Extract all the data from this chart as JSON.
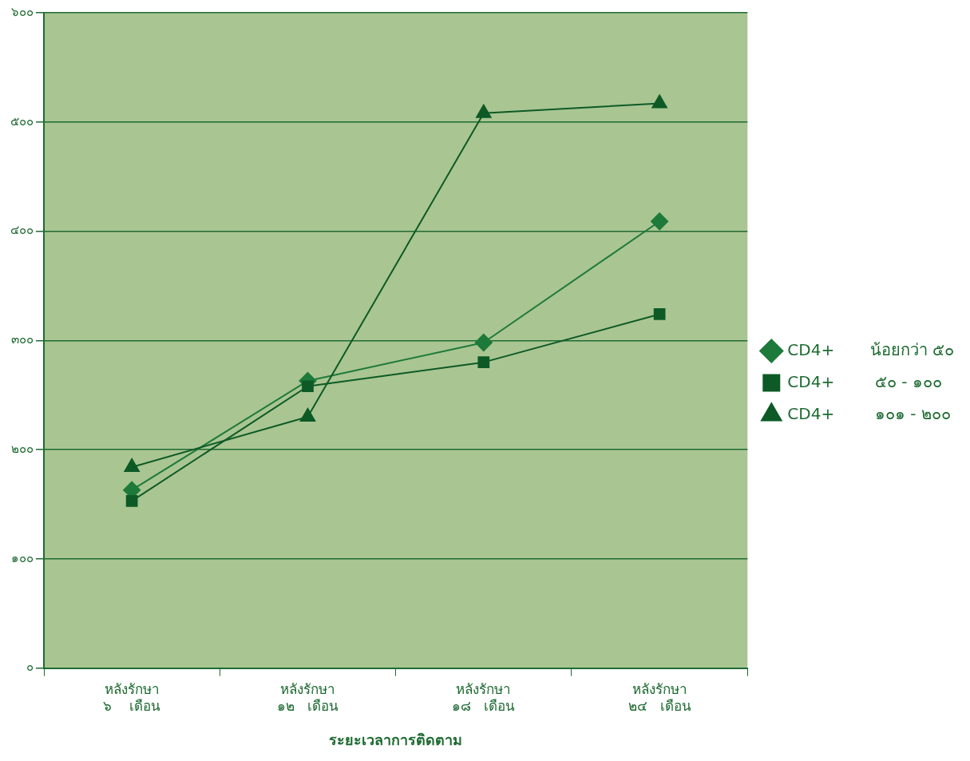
{
  "chart_data": {
    "type": "line",
    "xlabel": "ระยะเวลาการติดตาม",
    "categories": [
      "หลังรักษา\n๖    เดือน",
      "หลังรักษา\n๑๒   เดือน",
      "หลังรักษา\n๑๘   เดือน",
      "หลังรักษา\n๒๔   เดือน"
    ],
    "series": [
      {
        "name": "CD4+       น้อยกว่า ๕๐",
        "color": "#1e7a3a",
        "marker": "diamond",
        "values": [
          163,
          263,
          298,
          409
        ]
      },
      {
        "name": "CD4+        ๕๐ - ๑๐๐",
        "color": "#0d5a26",
        "marker": "square",
        "values": [
          153,
          258,
          280,
          324
        ]
      },
      {
        "name": "CD4+        ๑๐๑ - ๒๐๐",
        "color": "#0d5a26",
        "marker": "triangle",
        "values": [
          184,
          230,
          508,
          517
        ]
      }
    ],
    "ylim": [
      0,
      600
    ],
    "yticks": [
      {
        "value": 0,
        "label": "๐"
      },
      {
        "value": 100,
        "label": "๑๐๐"
      },
      {
        "value": 200,
        "label": "๒๐๐"
      },
      {
        "value": 300,
        "label": "๓๐๐"
      },
      {
        "value": 400,
        "label": "๔๐๐"
      },
      {
        "value": 500,
        "label": "๕๐๐"
      },
      {
        "value": 600,
        "label": "๖๐๐"
      }
    ],
    "grid": "y",
    "legend": "right",
    "line_style": "solid"
  }
}
